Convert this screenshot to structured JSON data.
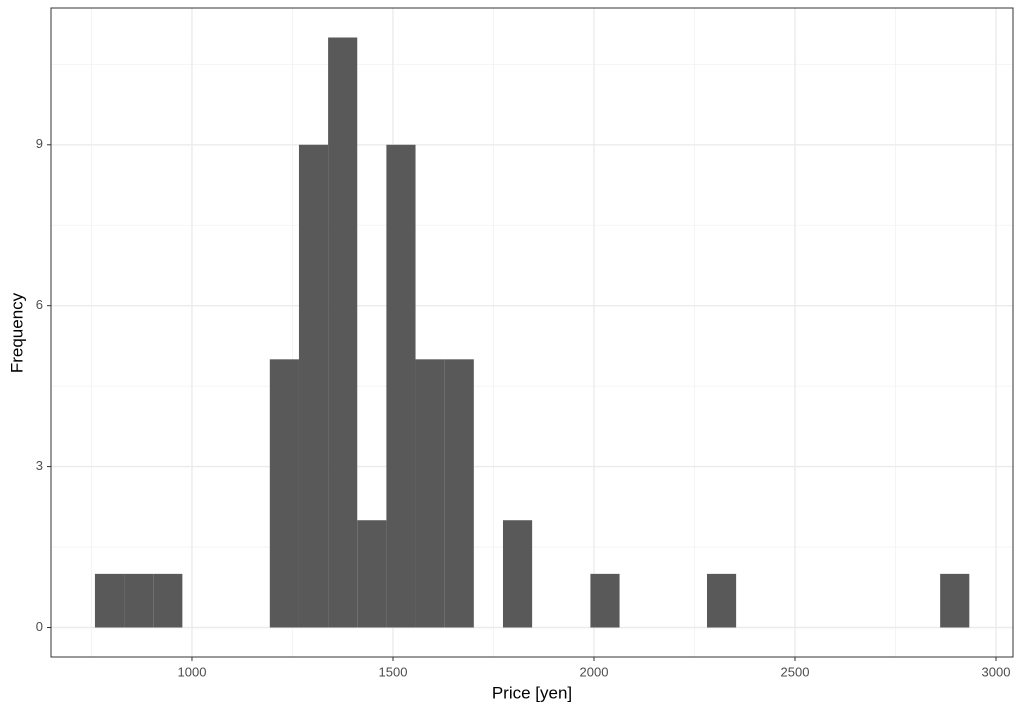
{
  "chart_data": {
    "type": "histogram",
    "xlabel": "Price [yen]",
    "ylabel": "Frequency",
    "bins": [
      758.6,
      831.1,
      903.6,
      976.1,
      1048.6,
      1121.1,
      1193.6,
      1266.1,
      1338.6,
      1411.1,
      1483.6,
      1556.1,
      1628.6,
      1701.1,
      1773.6,
      1846.1,
      1918.6,
      1991.1,
      2063.6,
      2136.1,
      2208.6,
      2281.1,
      2353.6,
      2426.1,
      2498.6,
      2571.1,
      2643.6,
      2716.1,
      2788.6,
      2861.1,
      2933.6
    ],
    "values": [
      1,
      1,
      1,
      0,
      0,
      0,
      5,
      9,
      11,
      2,
      9,
      5,
      5,
      0,
      2,
      0,
      0,
      1,
      0,
      0,
      0,
      1,
      0,
      0,
      0,
      0,
      0,
      0,
      0,
      1
    ],
    "color": "#595959",
    "xlim": [
      649.3,
      3042.3
    ],
    "xticks": [
      1000,
      1500,
      2000,
      2500,
      3000
    ],
    "xminorticks": [
      750,
      1250,
      1750,
      2250,
      2750
    ],
    "ylim": [
      -0.55,
      11.55
    ],
    "yticks": [
      0,
      3,
      6,
      9
    ],
    "yminorticks": [
      1.5,
      4.5,
      7.5,
      10.5
    ],
    "grid": true
  }
}
